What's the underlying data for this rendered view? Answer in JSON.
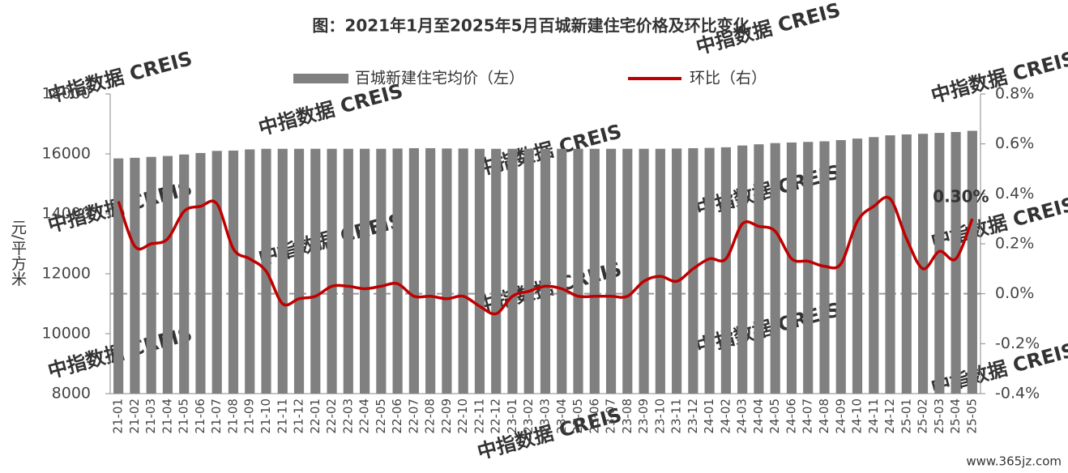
{
  "chart_data": {
    "type": "bar_line",
    "title": "图：2021年1月至2025年5月百城新建住宅价格及环比变化",
    "y_label": "元/平方米",
    "watermark": "中指数据 CREIS",
    "footer_text": "www.365jz.com",
    "categories": [
      "21-01",
      "21-02",
      "21-03",
      "21-04",
      "21-05",
      "21-06",
      "21-07",
      "21-08",
      "21-09",
      "21-10",
      "21-11",
      "21-12",
      "22-01",
      "22-02",
      "22-03",
      "22-04",
      "22-05",
      "22-06",
      "22-07",
      "22-08",
      "22-09",
      "22-10",
      "22-11",
      "22-12",
      "23-01",
      "23-02",
      "23-03",
      "23-04",
      "23-05",
      "23-06",
      "23-07",
      "23-08",
      "23-09",
      "23-10",
      "23-11",
      "23-12",
      "24-01",
      "24-02",
      "24-03",
      "24-04",
      "24-05",
      "24-06",
      "24-07",
      "24-08",
      "24-09",
      "24-10",
      "24-11",
      "24-12",
      "25-01",
      "25-02",
      "25-03",
      "25-04",
      "25-05"
    ],
    "series": [
      {
        "name": "百城新建住宅均价（左）",
        "type": "bar",
        "color": "#808080",
        "values": [
          15850,
          15870,
          15900,
          15930,
          15980,
          16030,
          16100,
          16110,
          16150,
          16170,
          16170,
          16170,
          16170,
          16170,
          16170,
          16170,
          16170,
          16180,
          16190,
          16190,
          16180,
          16180,
          16170,
          16170,
          16170,
          16170,
          16170,
          16170,
          16170,
          16170,
          16170,
          16170,
          16170,
          16170,
          16180,
          16190,
          16200,
          16220,
          16280,
          16320,
          16360,
          16380,
          16400,
          16420,
          16460,
          16510,
          16560,
          16620,
          16650,
          16670,
          16700,
          16730,
          16770
        ]
      },
      {
        "name": "环比（右）",
        "type": "line",
        "axis": "y2",
        "color": "#c00000",
        "values": [
          0.37,
          0.19,
          0.2,
          0.22,
          0.33,
          0.35,
          0.36,
          0.18,
          0.14,
          0.09,
          -0.04,
          -0.02,
          -0.01,
          0.03,
          0.03,
          0.02,
          0.03,
          0.04,
          -0.01,
          -0.01,
          -0.02,
          -0.01,
          -0.05,
          -0.08,
          -0.01,
          0.01,
          0.03,
          0.02,
          -0.01,
          -0.01,
          -0.01,
          -0.01,
          0.05,
          0.07,
          0.05,
          0.1,
          0.14,
          0.14,
          0.28,
          0.27,
          0.25,
          0.14,
          0.13,
          0.11,
          0.12,
          0.29,
          0.35,
          0.38,
          0.22,
          0.1,
          0.17,
          0.14,
          0.3
        ],
        "value_labels": [
          null,
          null,
          null,
          null,
          null,
          null,
          null,
          null,
          null,
          null,
          null,
          null,
          null,
          null,
          null,
          null,
          null,
          null,
          null,
          null,
          null,
          null,
          null,
          null,
          null,
          null,
          null,
          null,
          null,
          null,
          null,
          null,
          null,
          null,
          null,
          null,
          null,
          null,
          null,
          null,
          null,
          null,
          null,
          null,
          null,
          null,
          null,
          null,
          null,
          null,
          null,
          null,
          "0.30%"
        ]
      }
    ],
    "ylim": [
      8000,
      18000
    ],
    "yticks": [
      8000,
      10000,
      12000,
      14000,
      16000,
      18000
    ],
    "y2lim": [
      -0.4,
      0.8
    ],
    "y2ticks": [
      {
        "value": -0.4,
        "label": "-0.4%"
      },
      {
        "value": -0.2,
        "label": "-0.2%"
      },
      {
        "value": 0.0,
        "label": "0.0%"
      },
      {
        "value": 0.2,
        "label": "0.2%"
      },
      {
        "value": 0.4,
        "label": "0.4%"
      },
      {
        "value": 0.6,
        "label": "0.6%"
      },
      {
        "value": 0.8,
        "label": "0.8%"
      }
    ],
    "zero_line": true,
    "legend": "top"
  }
}
